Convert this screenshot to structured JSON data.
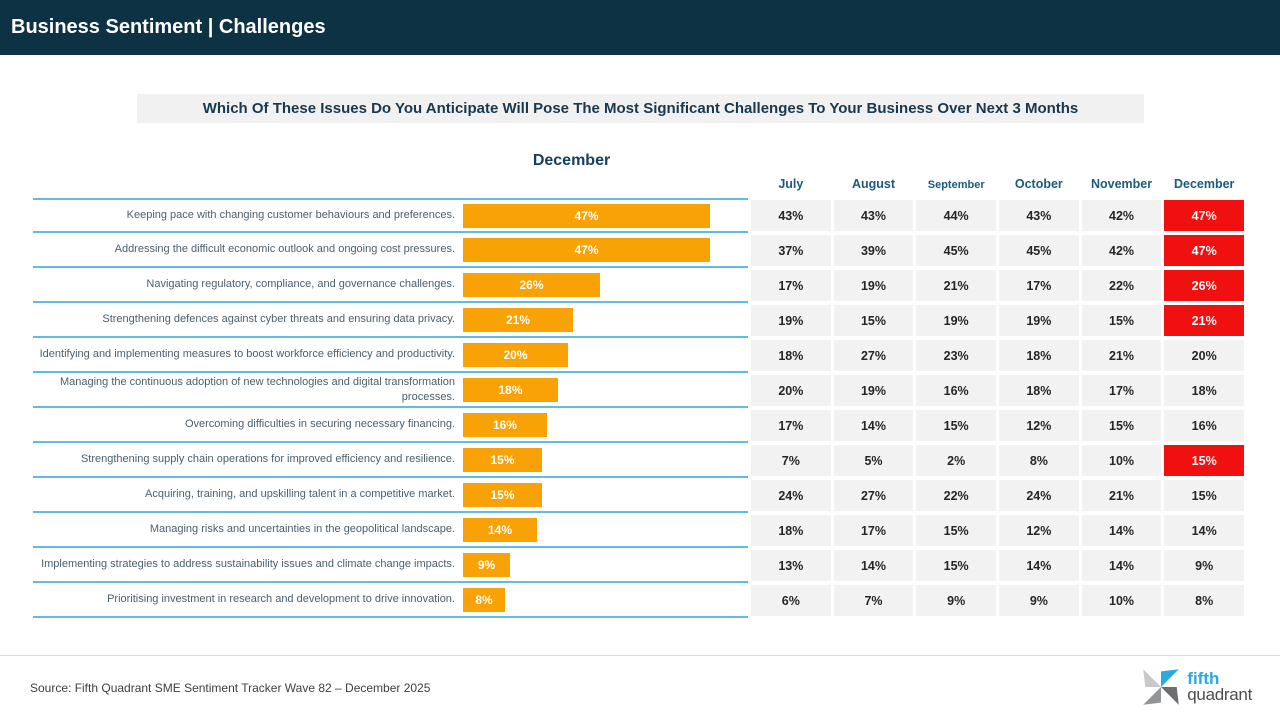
{
  "header": {
    "title": "Business Sentiment | Challenges"
  },
  "question": "Which Of These Issues Do You Anticipate Will Pose The Most Significant Challenges To Your Business Over Next 3 Months",
  "chart_data": {
    "type": "bar",
    "orientation": "horizontal",
    "title": "December",
    "unit": "%",
    "categories": [
      "Keeping pace with changing customer behaviours and preferences.",
      "Addressing the difficult economic outlook and ongoing cost pressures.",
      "Navigating regulatory, compliance, and governance challenges.",
      "Strengthening defences against cyber threats and ensuring data privacy.",
      "Identifying and implementing measures to boost workforce efficiency and productivity.",
      "Managing the continuous adoption of new technologies and digital transformation processes.",
      "Overcoming difficulties in securing necessary financing.",
      "Strengthening supply chain operations for improved efficiency and resilience.",
      "Acquiring, training, and upskilling talent in a competitive market.",
      "Managing risks and uncertainties in the geopolitical landscape.",
      "Implementing strategies to address sustainability issues and climate change impacts.",
      "Prioritising investment in research and development to drive innovation."
    ],
    "bar_values": [
      47,
      47,
      26,
      21,
      20,
      18,
      16,
      15,
      15,
      14,
      9,
      8
    ],
    "series": [
      {
        "name": "July",
        "values": [
          43,
          37,
          17,
          19,
          18,
          20,
          17,
          7,
          24,
          18,
          13,
          6
        ]
      },
      {
        "name": "August",
        "values": [
          43,
          39,
          19,
          15,
          27,
          19,
          14,
          5,
          27,
          17,
          14,
          7
        ]
      },
      {
        "name": "September",
        "values": [
          44,
          45,
          21,
          19,
          23,
          16,
          15,
          2,
          22,
          15,
          15,
          9
        ]
      },
      {
        "name": "October",
        "values": [
          43,
          45,
          17,
          19,
          18,
          18,
          12,
          8,
          24,
          12,
          14,
          9
        ]
      },
      {
        "name": "November",
        "values": [
          42,
          42,
          22,
          15,
          21,
          17,
          15,
          10,
          21,
          14,
          14,
          10
        ]
      },
      {
        "name": "December",
        "values": [
          47,
          47,
          26,
          21,
          20,
          18,
          16,
          15,
          15,
          14,
          9,
          8
        ]
      }
    ],
    "highlighted_rows_december": [
      0,
      1,
      2,
      3,
      7
    ],
    "axis_max_percent": 47,
    "colors": {
      "bar": "#f8a206",
      "highlight": "#f01010",
      "separator": "#62bbe0",
      "cell_bg": "#f2f2f2",
      "header_bg": "#0d3243"
    }
  },
  "footer": {
    "source": "Source: Fifth Quadrant SME Sentiment Tracker Wave 82 – December 2025",
    "logo": {
      "line1": "fifth",
      "line2": "quadrant"
    }
  }
}
